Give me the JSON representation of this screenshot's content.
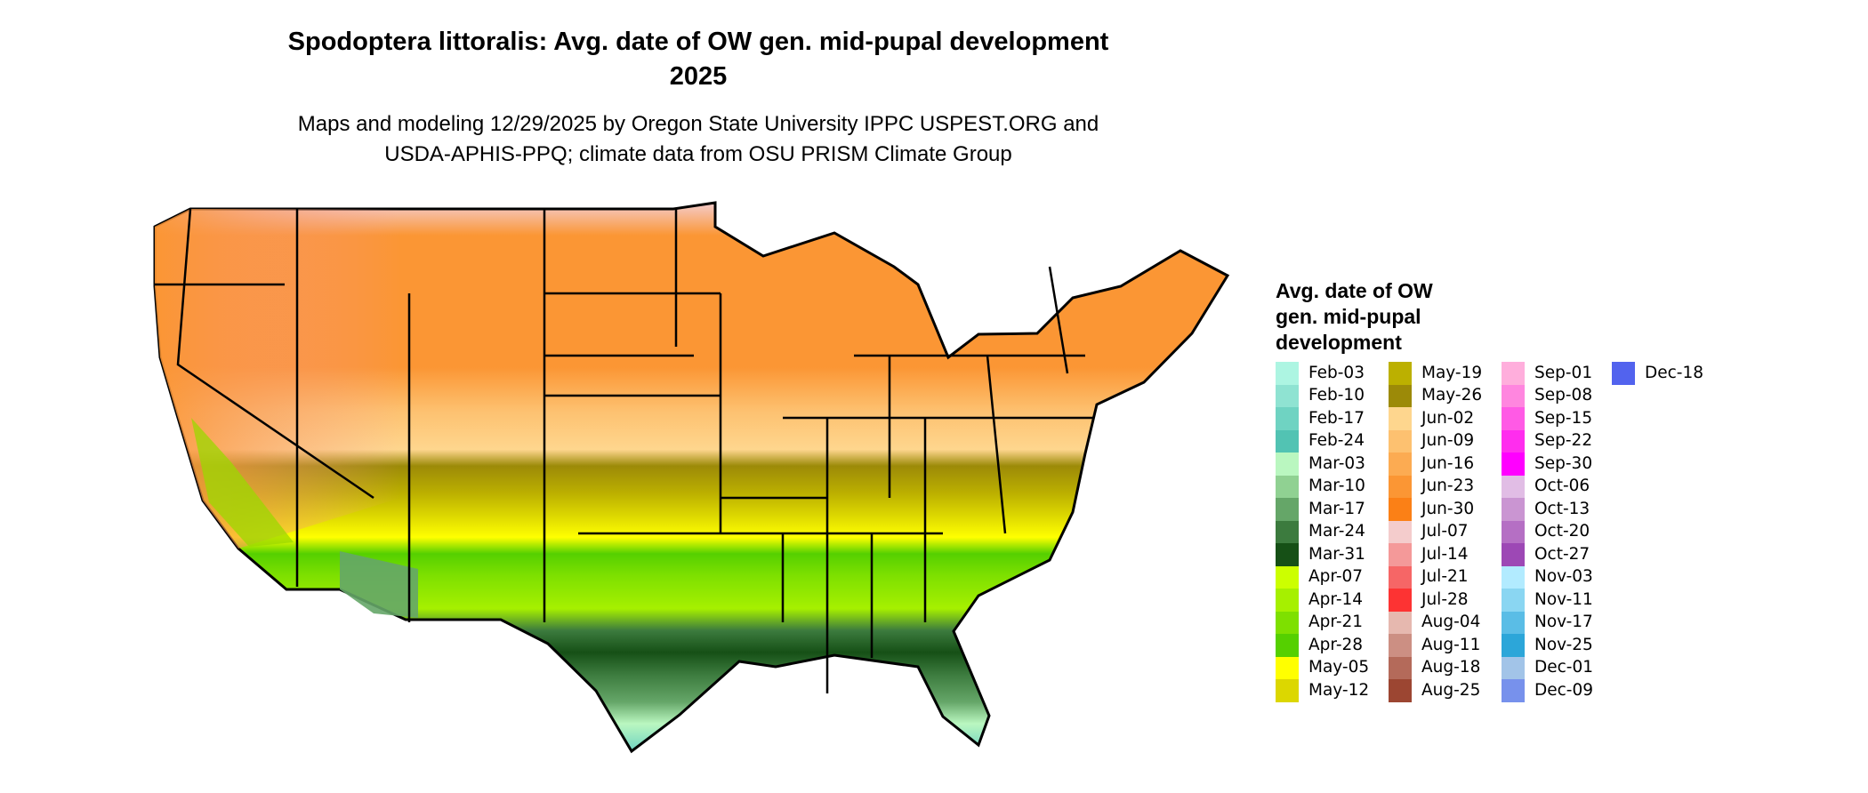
{
  "title": {
    "line1": "Spodoptera littoralis: Avg. date of OW gen. mid-pupal development",
    "line2": "2025"
  },
  "subtitle": {
    "line1": "Maps and modeling 12/29/2025 by Oregon State University IPPC USPEST.ORG and",
    "line2": "USDA-APHIS-PPQ; climate data from OSU PRISM Climate Group"
  },
  "legend": {
    "title_lines": [
      "Avg. date of OW",
      "gen. mid-pupal",
      "development"
    ],
    "items": [
      {
        "label": "Feb-03",
        "color": "#adf5e2"
      },
      {
        "label": "Feb-10",
        "color": "#8fe3d2"
      },
      {
        "label": "Feb-17",
        "color": "#6fd3c2"
      },
      {
        "label": "Feb-24",
        "color": "#52c3b3"
      },
      {
        "label": "Mar-03",
        "color": "#baf7c0"
      },
      {
        "label": "Mar-10",
        "color": "#90d192"
      },
      {
        "label": "Mar-17",
        "color": "#65a668"
      },
      {
        "label": "Mar-24",
        "color": "#3c7b3e"
      },
      {
        "label": "Mar-31",
        "color": "#165016"
      },
      {
        "label": "Apr-07",
        "color": "#ccff00"
      },
      {
        "label": "Apr-14",
        "color": "#a6f000"
      },
      {
        "label": "Apr-21",
        "color": "#7ee000"
      },
      {
        "label": "Apr-28",
        "color": "#55d000"
      },
      {
        "label": "May-05",
        "color": "#ffff00"
      },
      {
        "label": "May-12",
        "color": "#dcd700"
      },
      {
        "label": "May-19",
        "color": "#bcb000"
      },
      {
        "label": "May-26",
        "color": "#9c8a08"
      },
      {
        "label": "Jun-02",
        "color": "#fed68e"
      },
      {
        "label": "Jun-09",
        "color": "#fdc170"
      },
      {
        "label": "Jun-16",
        "color": "#fcab52"
      },
      {
        "label": "Jun-23",
        "color": "#fb9634"
      },
      {
        "label": "Jun-30",
        "color": "#fb8016"
      },
      {
        "label": "Jul-07",
        "color": "#f4cccc"
      },
      {
        "label": "Jul-14",
        "color": "#f49999"
      },
      {
        "label": "Jul-21",
        "color": "#f66666"
      },
      {
        "label": "Jul-28",
        "color": "#fd3333"
      },
      {
        "label": "Aug-04",
        "color": "#e6b8af"
      },
      {
        "label": "Aug-11",
        "color": "#cc8f83"
      },
      {
        "label": "Aug-18",
        "color": "#b46a5a"
      },
      {
        "label": "Aug-25",
        "color": "#9c4632"
      },
      {
        "label": "Sep-01",
        "color": "#ffaedc"
      },
      {
        "label": "Sep-08",
        "color": "#ff86df"
      },
      {
        "label": "Sep-15",
        "color": "#ff5ae5"
      },
      {
        "label": "Sep-22",
        "color": "#ff2dee"
      },
      {
        "label": "Sep-30",
        "color": "#ff00ff"
      },
      {
        "label": "Oct-06",
        "color": "#e1bde5"
      },
      {
        "label": "Oct-13",
        "color": "#ca95d2"
      },
      {
        "label": "Oct-20",
        "color": "#b56fc4"
      },
      {
        "label": "Oct-27",
        "color": "#9d48b5"
      },
      {
        "label": "Nov-03",
        "color": "#b2ebff"
      },
      {
        "label": "Nov-11",
        "color": "#8ad6f2"
      },
      {
        "label": "Nov-17",
        "color": "#5abde6"
      },
      {
        "label": "Nov-25",
        "color": "#2ca6d9"
      },
      {
        "label": "Dec-01",
        "color": "#a2c4e8"
      },
      {
        "label": "Dec-09",
        "color": "#7791ec"
      },
      {
        "label": "Dec-18",
        "color": "#5263ee"
      }
    ]
  }
}
